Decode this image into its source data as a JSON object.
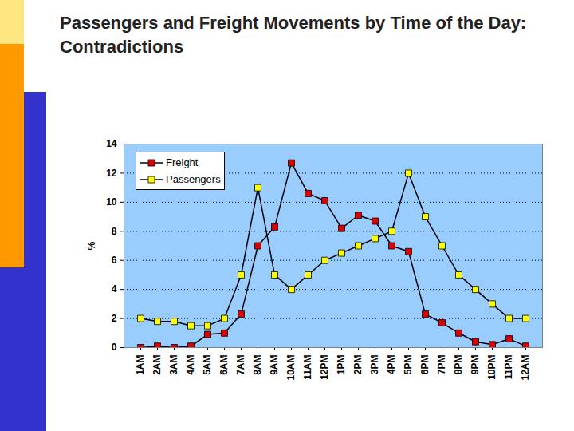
{
  "chart_data": {
    "type": "line",
    "title": "Passengers and Freight Movements by Time of the Day: Contradictions",
    "y_label": "%",
    "categories": [
      "1AM",
      "2AM",
      "3AM",
      "4AM",
      "5AM",
      "6AM",
      "7AM",
      "8AM",
      "9AM",
      "10AM",
      "11AM",
      "12PM",
      "1PM",
      "2PM",
      "3PM",
      "4PM",
      "5PM",
      "6PM",
      "7PM",
      "8PM",
      "9PM",
      "10PM",
      "11PM",
      "12AM"
    ],
    "series": [
      {
        "name": "Freight",
        "color": "#dd0000",
        "marker": "square",
        "values": [
          0,
          0.1,
          0,
          0.1,
          0.9,
          1.0,
          2.3,
          7.0,
          8.3,
          12.7,
          10.6,
          10.1,
          8.2,
          9.1,
          8.7,
          7.0,
          6.6,
          2.3,
          1.7,
          1.0,
          0.4,
          0.2,
          0.6,
          0.1
        ]
      },
      {
        "name": "Passengers",
        "color": "#ffff00",
        "marker": "square",
        "values": [
          2.0,
          1.8,
          1.8,
          1.5,
          1.5,
          2.0,
          5.0,
          11.0,
          5.0,
          4.0,
          5.0,
          6.0,
          6.5,
          7.0,
          7.5,
          8.0,
          12.0,
          9.0,
          7.0,
          5.0,
          4.0,
          3.0,
          2.0,
          2.0
        ]
      }
    ],
    "ylim": [
      0,
      14
    ],
    "yticks": [
      0,
      2,
      4,
      6,
      8,
      10,
      12,
      14
    ],
    "grid": true,
    "legend": "top-left"
  }
}
